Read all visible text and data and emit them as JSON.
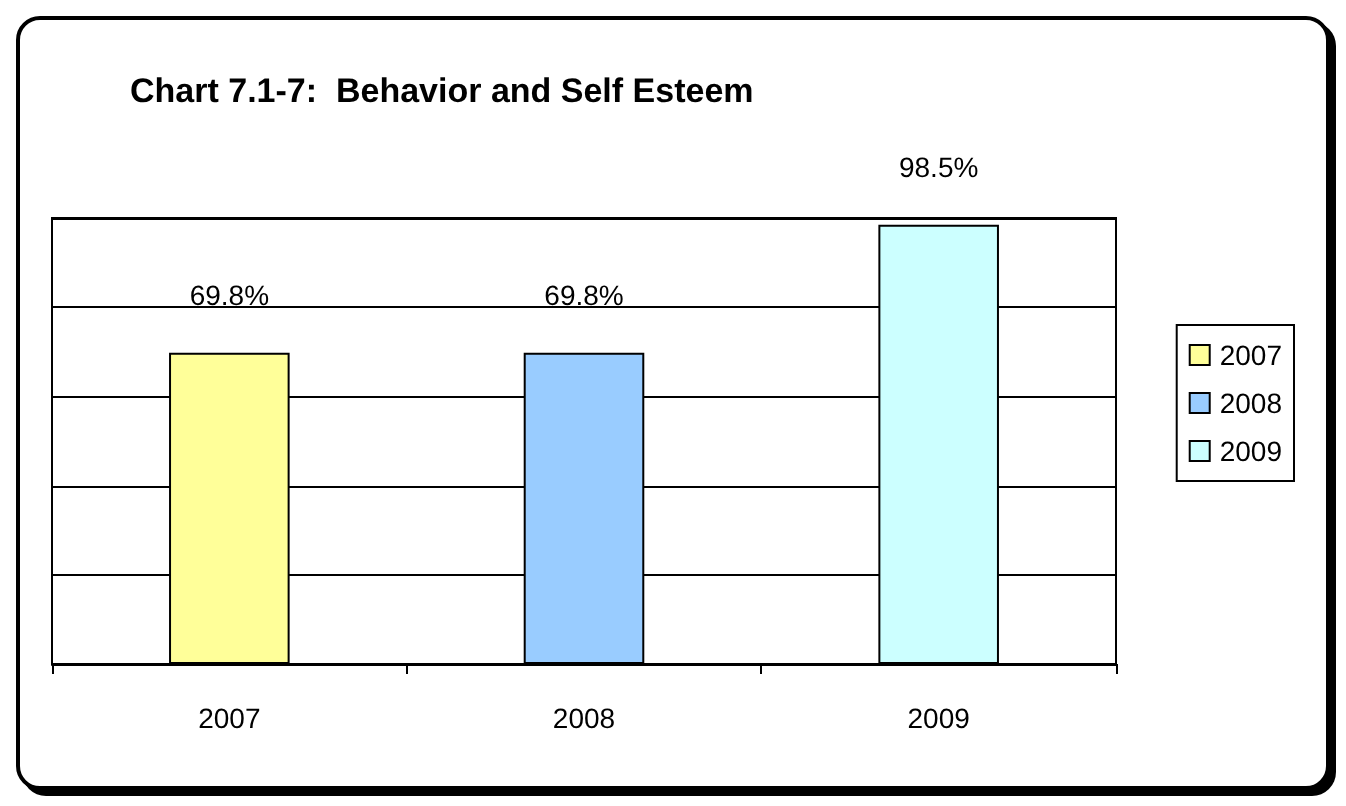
{
  "chart_data": {
    "type": "bar",
    "title": "Chart 7.1-7:  Behavior and Self Esteem",
    "categories": [
      "2007",
      "2008",
      "2009"
    ],
    "stacked": true,
    "series": [
      {
        "name": "2007",
        "color": "#ffff99",
        "values": [
          69.8,
          null,
          null
        ],
        "value_labels": [
          "69.8%",
          null,
          null
        ]
      },
      {
        "name": "2008",
        "color": "#99ccff",
        "values": [
          null,
          69.8,
          null
        ],
        "value_labels": [
          null,
          "69.8%",
          null
        ]
      },
      {
        "name": "2009",
        "color": "#ccffff",
        "values": [
          null,
          null,
          98.5
        ],
        "value_labels": [
          null,
          null,
          "98.5%"
        ]
      }
    ],
    "ylim": [
      0,
      100
    ],
    "yticks": [
      {
        "value": 0,
        "label": null
      },
      {
        "value": 20,
        "label": null
      },
      {
        "value": 40,
        "label": null
      },
      {
        "value": 60,
        "label": null
      },
      {
        "value": 80,
        "label": null
      },
      {
        "value": 100,
        "label": null
      }
    ],
    "grid": "y",
    "legend": "right"
  }
}
